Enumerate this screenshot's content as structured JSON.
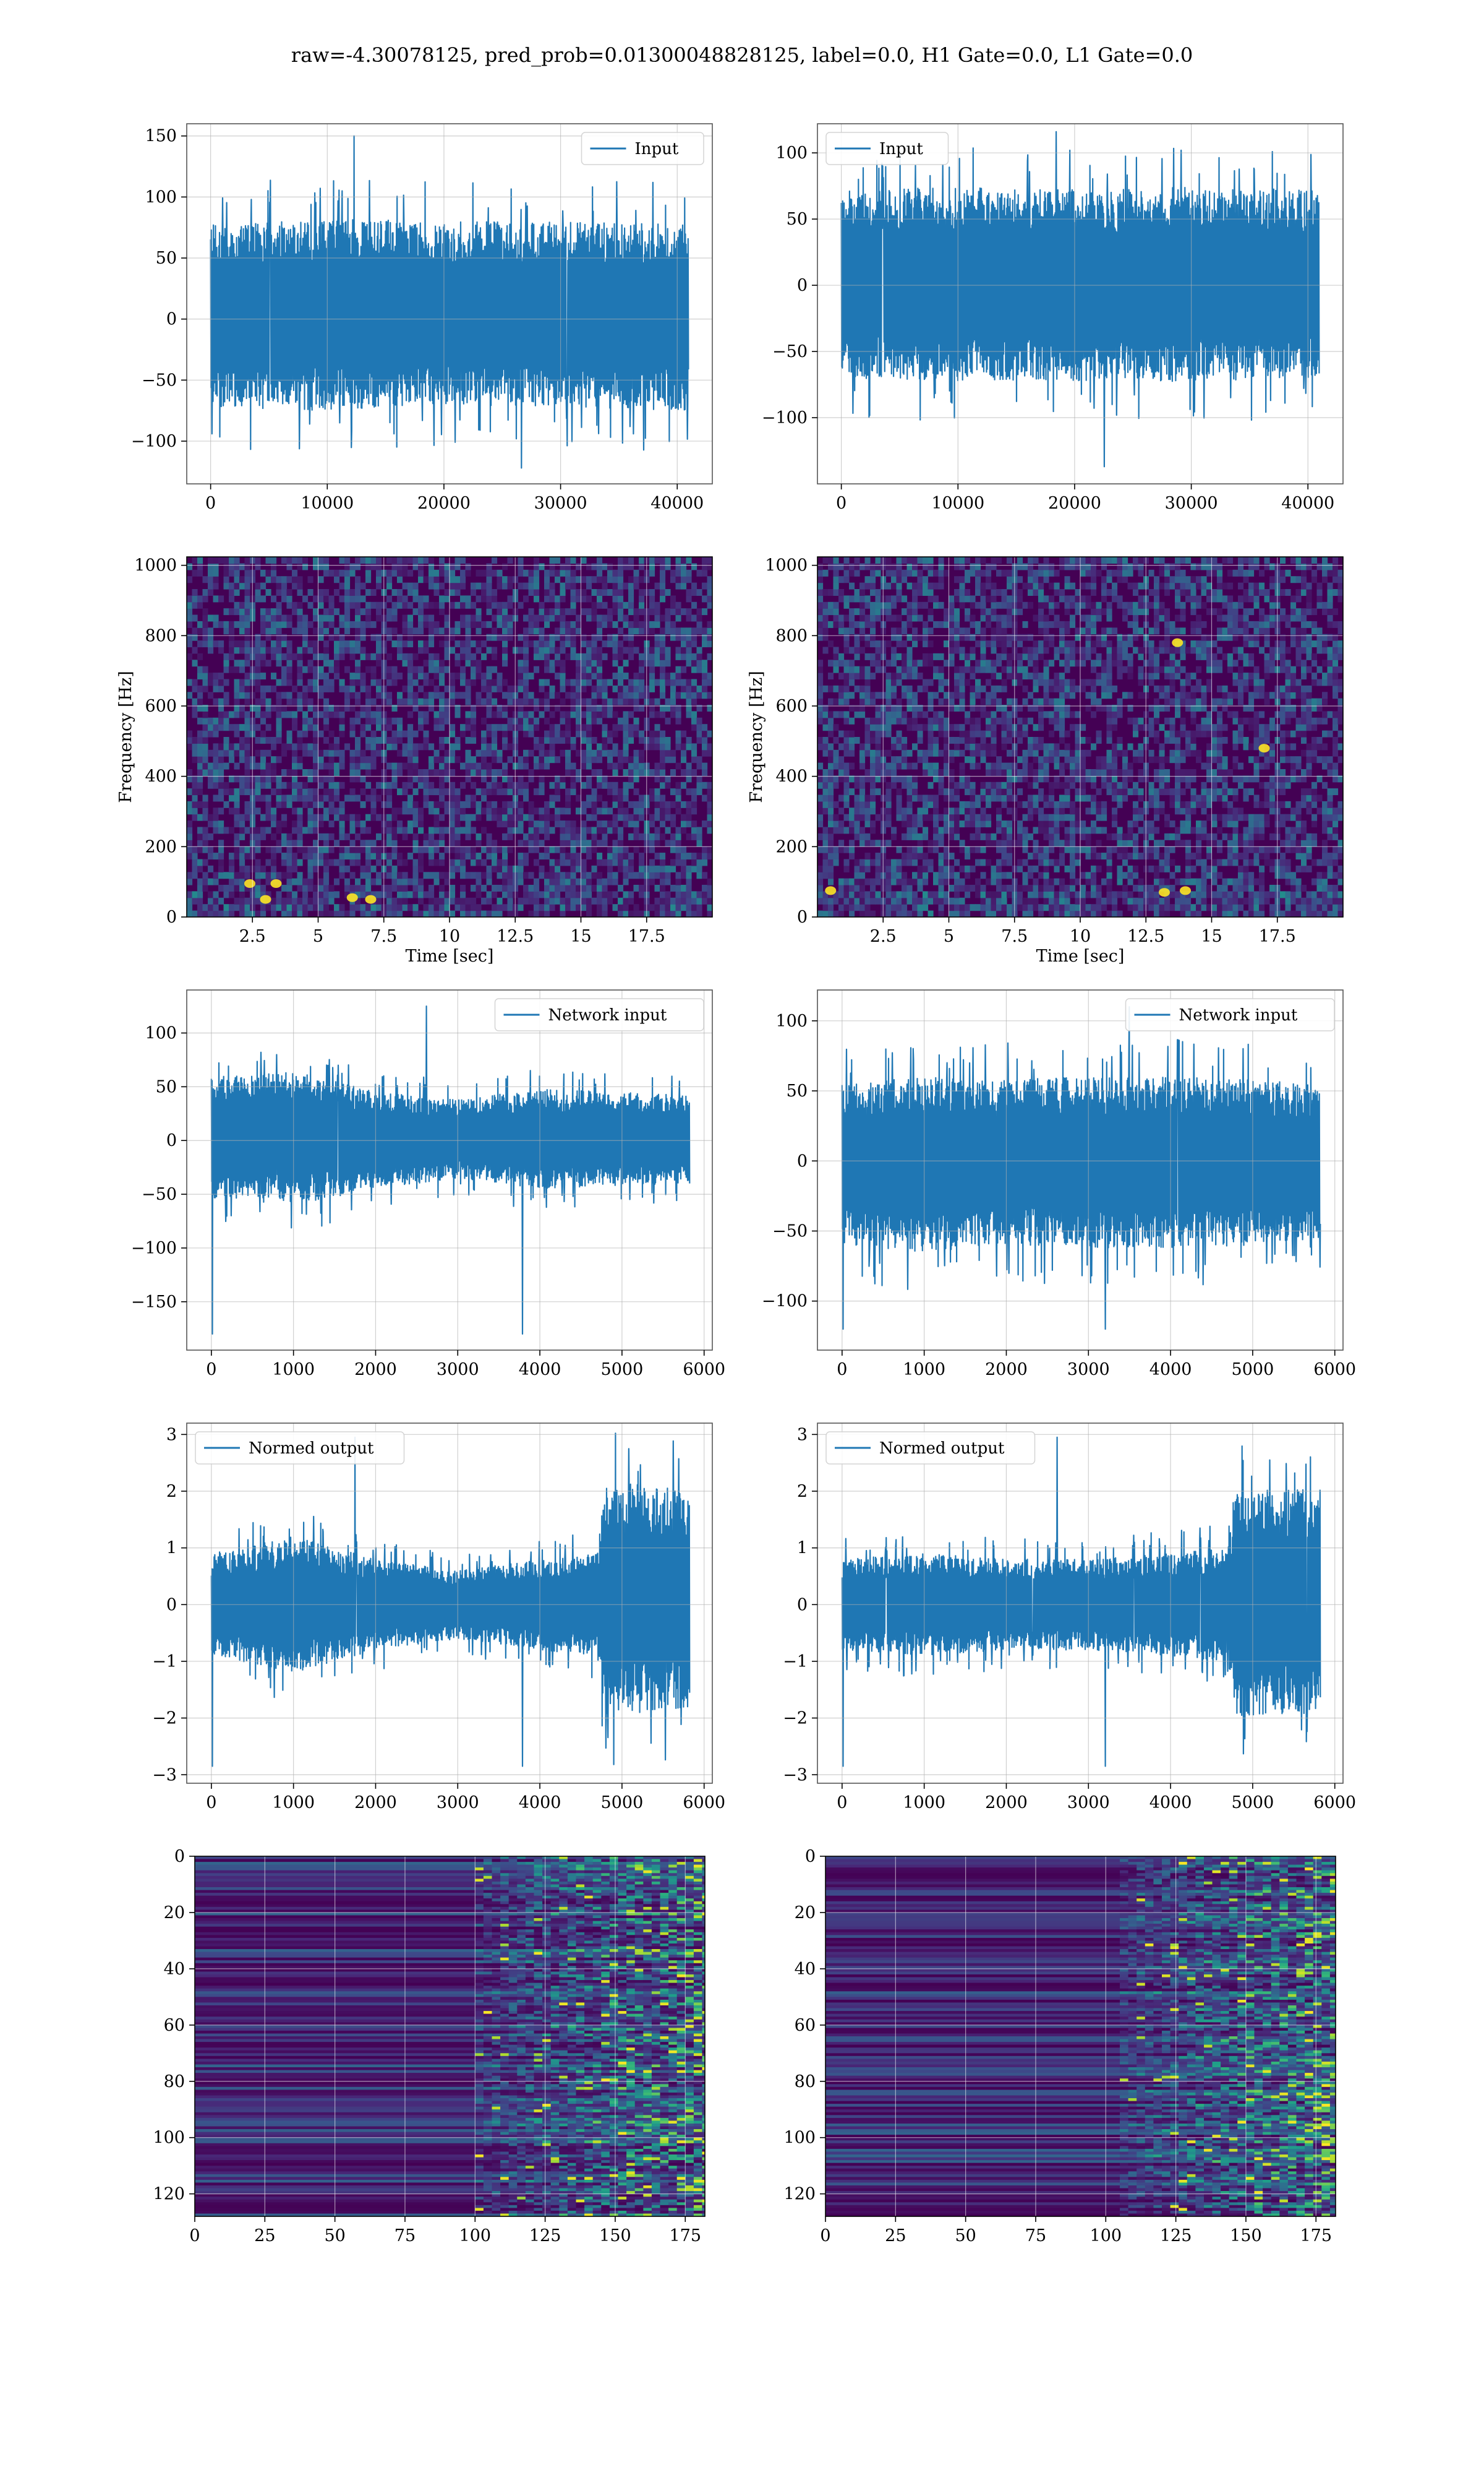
{
  "suptitle": "raw=-4.30078125, pred_prob=0.01300048828125, label=0.0, H1 Gate=0.0, L1 Gate=0.0",
  "colors": {
    "line": "#1f77b4",
    "grid": "#b0b0b0",
    "frame": "#000000",
    "viridis_low": "#440154",
    "viridis_mid": "#21918c",
    "viridis_high": "#fde725"
  },
  "chart_data": [
    {
      "id": "input-left",
      "type": "line",
      "legend": "Input",
      "legend_loc": "upper right",
      "xlim": [
        -2048,
        43008
      ],
      "ylim": [
        -135,
        160
      ],
      "xticks": [
        0,
        10000,
        20000,
        30000,
        40000
      ],
      "yticks": [
        -100,
        -50,
        0,
        50,
        100,
        150
      ],
      "x_range": [
        0,
        40960
      ],
      "envelope": [
        {
          "x": 0,
          "low": -72,
          "high": 78
        },
        {
          "x": 10000,
          "low": -75,
          "high": 82
        },
        {
          "x": 20000,
          "low": -70,
          "high": 80
        },
        {
          "x": 30000,
          "low": -72,
          "high": 80
        },
        {
          "x": 40960,
          "low": -75,
          "high": 78
        }
      ],
      "extremes": {
        "max": 150,
        "min": -122
      }
    },
    {
      "id": "input-right",
      "type": "line",
      "legend": "Input",
      "legend_loc": "upper left",
      "xlim": [
        -2048,
        43008
      ],
      "ylim": [
        -150,
        122
      ],
      "xticks": [
        0,
        10000,
        20000,
        30000,
        40000
      ],
      "yticks": [
        -100,
        -50,
        0,
        50,
        100
      ],
      "x_range": [
        0,
        40960
      ],
      "envelope": [
        {
          "x": 0,
          "low": -70,
          "high": 72
        },
        {
          "x": 10000,
          "low": -72,
          "high": 74
        },
        {
          "x": 20000,
          "low": -72,
          "high": 72
        },
        {
          "x": 30000,
          "low": -74,
          "high": 74
        },
        {
          "x": 40960,
          "low": -70,
          "high": 72
        }
      ],
      "extremes": {
        "max": 116,
        "min": -137
      }
    },
    {
      "id": "spec-left",
      "type": "heatmap",
      "colormap": "viridis",
      "xlim": [
        0,
        20
      ],
      "ylim": [
        0,
        1024
      ],
      "xticks": [
        2.5,
        5.0,
        7.5,
        10.0,
        12.5,
        15.0,
        17.5
      ],
      "yticks": [
        0,
        200,
        400,
        600,
        800,
        1000
      ],
      "xlabel": "Time [sec]",
      "ylabel": "Frequency [Hz]",
      "hot_spots": [
        {
          "t": 2.4,
          "f": 95
        },
        {
          "t": 3.4,
          "f": 95
        },
        {
          "t": 3.0,
          "f": 50
        },
        {
          "t": 6.3,
          "f": 55
        },
        {
          "t": 7.0,
          "f": 50
        }
      ]
    },
    {
      "id": "spec-right",
      "type": "heatmap",
      "colormap": "viridis",
      "xlim": [
        0,
        20
      ],
      "ylim": [
        0,
        1024
      ],
      "xticks": [
        2.5,
        5.0,
        7.5,
        10.0,
        12.5,
        15.0,
        17.5
      ],
      "yticks": [
        0,
        200,
        400,
        600,
        800,
        1000
      ],
      "xlabel": "Time [sec]",
      "ylabel": "Frequency [Hz]",
      "hot_spots": [
        {
          "t": 0.5,
          "f": 75
        },
        {
          "t": 13.7,
          "f": 780
        },
        {
          "t": 13.2,
          "f": 70
        },
        {
          "t": 14.0,
          "f": 75
        },
        {
          "t": 17.0,
          "f": 480
        }
      ]
    },
    {
      "id": "network-left",
      "type": "line",
      "legend": "Network input",
      "legend_loc": "upper right",
      "xlim": [
        -300,
        6100
      ],
      "ylim": [
        -195,
        140
      ],
      "xticks": [
        0,
        1000,
        2000,
        3000,
        4000,
        5000,
        6000
      ],
      "yticks": [
        -150,
        -100,
        -50,
        0,
        50,
        100
      ],
      "x_range": [
        0,
        5824
      ],
      "envelope": [
        {
          "x": 0,
          "low": -55,
          "high": 60
        },
        {
          "x": 1000,
          "low": -60,
          "high": 65
        },
        {
          "x": 2000,
          "low": -45,
          "high": 45
        },
        {
          "x": 3000,
          "low": -35,
          "high": 38
        },
        {
          "x": 4000,
          "low": -45,
          "high": 48
        },
        {
          "x": 5000,
          "low": -42,
          "high": 45
        },
        {
          "x": 5824,
          "low": -40,
          "high": 42
        }
      ],
      "extremes": {
        "max": 125,
        "min": -180
      }
    },
    {
      "id": "network-right",
      "type": "line",
      "legend": "Network input",
      "legend_loc": "upper right",
      "xlim": [
        -300,
        6100
      ],
      "ylim": [
        -135,
        122
      ],
      "xticks": [
        0,
        1000,
        2000,
        3000,
        4000,
        5000,
        6000
      ],
      "yticks": [
        -100,
        -50,
        0,
        50,
        100
      ],
      "x_range": [
        0,
        5824
      ],
      "envelope": [
        {
          "x": 0,
          "low": -60,
          "high": 55
        },
        {
          "x": 1000,
          "low": -65,
          "high": 60
        },
        {
          "x": 2000,
          "low": -60,
          "high": 58
        },
        {
          "x": 3000,
          "low": -62,
          "high": 60
        },
        {
          "x": 4000,
          "low": -62,
          "high": 60
        },
        {
          "x": 5000,
          "low": -60,
          "high": 58
        },
        {
          "x": 5824,
          "low": -55,
          "high": 55
        }
      ],
      "extremes": {
        "max": 110,
        "min": -120
      }
    },
    {
      "id": "normed-left",
      "type": "line",
      "legend": "Normed output",
      "legend_loc": "upper left",
      "xlim": [
        -300,
        6100
      ],
      "ylim": [
        -3.15,
        3.2
      ],
      "xticks": [
        0,
        1000,
        2000,
        3000,
        4000,
        5000,
        6000
      ],
      "yticks": [
        -3,
        -2,
        -1,
        0,
        1,
        2,
        3
      ],
      "x_range": [
        0,
        5824
      ],
      "envelope": [
        {
          "x": 0,
          "low": -0.9,
          "high": 0.9
        },
        {
          "x": 1000,
          "low": -1.2,
          "high": 1.2
        },
        {
          "x": 2000,
          "low": -0.8,
          "high": 0.8
        },
        {
          "x": 3000,
          "low": -0.6,
          "high": 0.6
        },
        {
          "x": 4000,
          "low": -0.8,
          "high": 0.8
        },
        {
          "x": 4700,
          "low": -0.9,
          "high": 0.9
        },
        {
          "x": 4800,
          "low": -2.0,
          "high": 2.2
        },
        {
          "x": 5824,
          "low": -1.8,
          "high": 2.0
        }
      ],
      "extremes": {
        "max": 2.95,
        "min": -2.85
      }
    },
    {
      "id": "normed-right",
      "type": "line",
      "legend": "Normed output",
      "legend_loc": "upper left",
      "xlim": [
        -300,
        6100
      ],
      "ylim": [
        -3.15,
        3.2
      ],
      "xticks": [
        0,
        1000,
        2000,
        3000,
        4000,
        5000,
        6000
      ],
      "yticks": [
        -3,
        -2,
        -1,
        0,
        1,
        2,
        3
      ],
      "x_range": [
        0,
        5824
      ],
      "envelope": [
        {
          "x": 0,
          "low": -0.8,
          "high": 0.8
        },
        {
          "x": 1000,
          "low": -0.9,
          "high": 0.9
        },
        {
          "x": 2000,
          "low": -0.8,
          "high": 0.8
        },
        {
          "x": 3000,
          "low": -0.8,
          "high": 0.8
        },
        {
          "x": 4000,
          "low": -0.9,
          "high": 0.9
        },
        {
          "x": 4700,
          "low": -1.0,
          "high": 1.0
        },
        {
          "x": 4800,
          "low": -2.0,
          "high": 2.0
        },
        {
          "x": 5824,
          "low": -1.9,
          "high": 2.1
        }
      ],
      "extremes": {
        "max": 2.95,
        "min": -2.85
      }
    },
    {
      "id": "feat-left",
      "type": "heatmap",
      "colormap": "viridis",
      "y_inverted": true,
      "xlim": [
        0,
        182
      ],
      "ylim": [
        128,
        0
      ],
      "xticks": [
        0,
        25,
        50,
        75,
        100,
        125,
        150,
        175
      ],
      "yticks": [
        0,
        20,
        40,
        60,
        80,
        100,
        120
      ],
      "active_from": 100
    },
    {
      "id": "feat-right",
      "type": "heatmap",
      "colormap": "viridis",
      "y_inverted": true,
      "xlim": [
        0,
        182
      ],
      "ylim": [
        128,
        0
      ],
      "xticks": [
        0,
        25,
        50,
        75,
        100,
        125,
        150,
        175
      ],
      "yticks": [
        0,
        20,
        40,
        60,
        80,
        100,
        120
      ],
      "active_from": 105
    }
  ]
}
